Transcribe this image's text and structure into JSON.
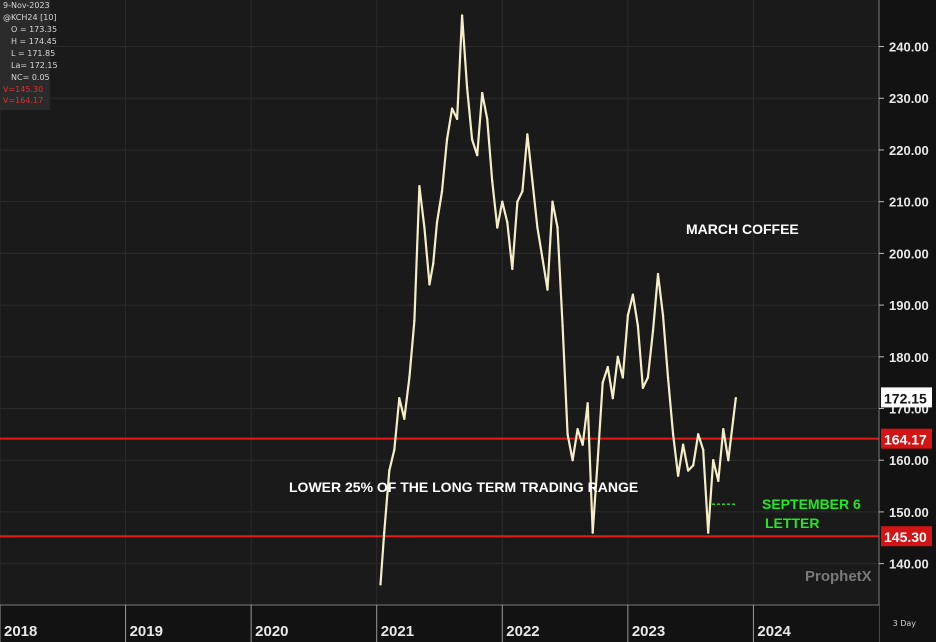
{
  "ohlc_panel": {
    "date": "9-Nov-2023",
    "symbol": "@KCH24 [10]",
    "open": "O = 173.35",
    "high": "H = 174.45",
    "low": "L = 171.85",
    "last": "La= 172.15",
    "net_change": "NC= 0.05",
    "v1": "V=145.30",
    "v2": "V=164.17"
  },
  "timeframe": "3 Day",
  "brand": "ProphetX",
  "colors": {
    "background": "#1a1a1a",
    "price_line": "#f4efc8",
    "support_line": "#e31b1b",
    "annotation_green": "#22e822",
    "annotation_white": "#ffffff"
  },
  "chart_data": {
    "type": "line",
    "title": "MARCH COFFEE",
    "x_labels": [
      "2018",
      "2019",
      "2020",
      "2021",
      "2022",
      "2023",
      "2024"
    ],
    "y_ticks": [
      140,
      150,
      160,
      170,
      180,
      190,
      200,
      210,
      220,
      230,
      240
    ],
    "y_tick_labels": [
      "140.00",
      "150.00",
      "160.00",
      "170.00",
      "180.00",
      "190.00",
      "200.00",
      "210.00",
      "220.00",
      "230.00",
      "240.00"
    ],
    "ylim": [
      132,
      249
    ],
    "xlim": [
      2018.0,
      2025.0
    ],
    "grid": true,
    "last_price": "172.15",
    "series": [
      {
        "x": [
          2021.03,
          2021.06,
          2021.1,
          2021.14,
          2021.18,
          2021.22,
          2021.26,
          2021.3,
          2021.34,
          2021.38,
          2021.42,
          2021.45,
          2021.48,
          2021.52,
          2021.56,
          2021.6,
          2021.64,
          2021.68,
          2021.72,
          2021.76,
          2021.8,
          2021.84,
          2021.88,
          2021.92,
          2021.96,
          2022.0,
          2022.04,
          2022.08,
          2022.12,
          2022.16,
          2022.2,
          2022.24,
          2022.28,
          2022.32,
          2022.36,
          2022.4,
          2022.44,
          2022.48,
          2022.52,
          2022.56,
          2022.6,
          2022.64,
          2022.68,
          2022.72,
          2022.76,
          2022.8,
          2022.84,
          2022.88,
          2022.92,
          2022.96,
          2023.0,
          2023.04,
          2023.08,
          2023.12,
          2023.16,
          2023.2,
          2023.24,
          2023.28,
          2023.32,
          2023.36,
          2023.4,
          2023.44,
          2023.48,
          2023.52,
          2023.56,
          2023.6,
          2023.64,
          2023.68,
          2023.72,
          2023.76,
          2023.8,
          2023.84,
          2023.86
        ],
        "values": [
          136,
          146,
          158,
          162,
          172,
          168,
          176,
          187,
          213,
          205,
          194,
          198,
          206,
          212,
          222,
          228,
          226,
          246,
          232,
          222,
          219,
          231,
          226,
          214,
          205,
          210,
          206,
          197,
          210,
          212,
          223,
          214,
          205,
          199,
          193,
          210,
          205,
          186,
          165,
          160,
          166,
          163,
          171,
          146,
          160,
          175,
          178,
          172,
          180,
          176,
          188,
          192,
          186,
          174,
          176,
          185,
          196,
          188,
          176,
          165,
          157,
          163,
          158,
          159,
          165,
          162,
          146,
          160,
          156,
          166,
          160,
          168,
          172
        ]
      }
    ],
    "levels": [
      {
        "value": 164.17,
        "label": "164.17"
      },
      {
        "value": 145.3,
        "label": "145.30"
      }
    ],
    "annotations": {
      "chart_title": "MARCH COFFEE",
      "range_note": "LOWER 25% OF THE LONG TERM TRADING RANGE",
      "letter_line1": "SEPTEMBER 6",
      "letter_line2": "LETTER",
      "letter_price": 151.5,
      "letter_x_start": 2023.67,
      "letter_x_end": 2023.86
    }
  }
}
